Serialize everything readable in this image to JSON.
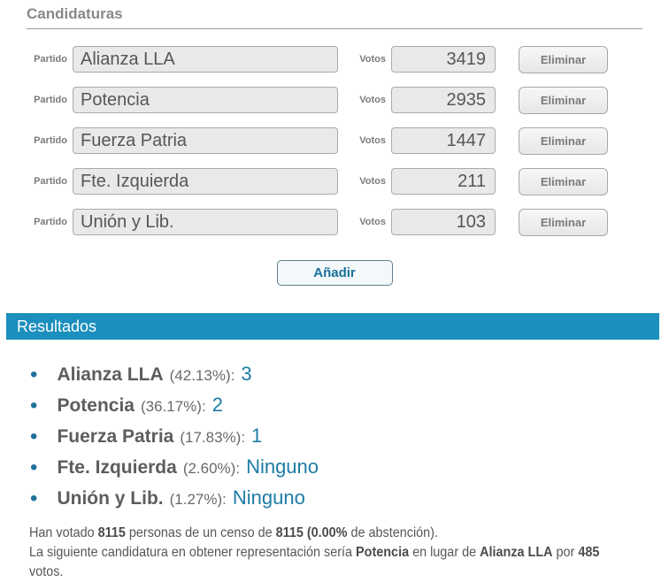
{
  "candidaturas": {
    "title": "Candidaturas",
    "partido_label": "Partido",
    "votos_label": "Votos",
    "eliminar_label": "Eliminar",
    "anadir_label": "Añadir",
    "rows": [
      {
        "partido": "Alianza LLA",
        "votos": "3419"
      },
      {
        "partido": "Potencia",
        "votos": "2935"
      },
      {
        "partido": "Fuerza Patria",
        "votos": "1447"
      },
      {
        "partido": "Fte. Izquierda",
        "votos": "211"
      },
      {
        "partido": "Unión y Lib.",
        "votos": "103"
      }
    ]
  },
  "resultados": {
    "title": "Resultados",
    "items": [
      {
        "name": "Alianza LLA",
        "percent": "(42.13%):",
        "seats": "3"
      },
      {
        "name": "Potencia",
        "percent": "(36.17%):",
        "seats": "2"
      },
      {
        "name": "Fuerza Patria",
        "percent": "(17.83%):",
        "seats": "1"
      },
      {
        "name": "Fte. Izquierda",
        "percent": "(2.60%):",
        "seats": "Ninguno"
      },
      {
        "name": "Unión y Lib.",
        "percent": "(1.27%):",
        "seats": "Ninguno"
      }
    ],
    "footer": {
      "line1": [
        {
          "text": "Han votado "
        },
        {
          "text": "8115"
        },
        {
          "text": " personas de un censo de "
        },
        {
          "text": "8115 (0.00%"
        },
        {
          "text": " de abstención)."
        }
      ],
      "line2": [
        {
          "text": "La siguiente candidatura en obtener representación sería "
        },
        {
          "text": "Potencia"
        },
        {
          "text": " en lugar de "
        },
        {
          "text": "Alianza LLA"
        },
        {
          "text": " por "
        },
        {
          "text": "485"
        }
      ],
      "line3": "votos."
    }
  },
  "colors": {
    "results_bar": "#1b8fbd",
    "accent_text": "#1d7ca5",
    "heading_gray": "#898989",
    "input_background": "#e9e9e9"
  }
}
